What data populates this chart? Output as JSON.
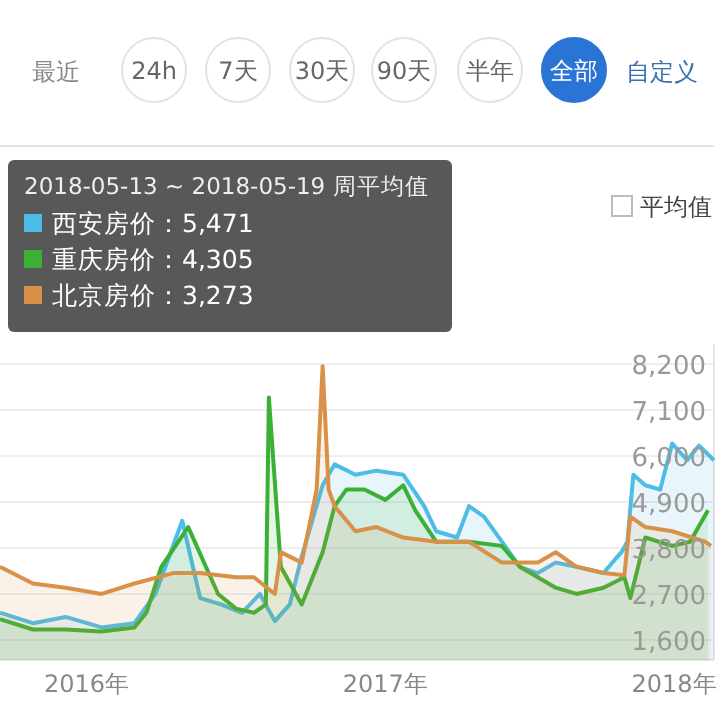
{
  "chart_data": {
    "type": "area",
    "xlim": [
      2015.71,
      2018.1
    ],
    "xticks": [
      {
        "value": 2016,
        "label": "2016年"
      },
      {
        "value": 2017,
        "label": "2017年"
      },
      {
        "value": 2018,
        "label": "2018年"
      }
    ],
    "ylim": [
      1120,
      8680
    ],
    "yticks": [
      {
        "value": 1600,
        "label": "1,600"
      },
      {
        "value": 2700,
        "label": "2,700"
      },
      {
        "value": 3800,
        "label": "3,800"
      },
      {
        "value": 4900,
        "label": "4,900"
      },
      {
        "value": 6000,
        "label": "6,000"
      },
      {
        "value": 7100,
        "label": "7,100"
      },
      {
        "value": 8200,
        "label": "8,200"
      }
    ],
    "grid": "y",
    "legend": "top left",
    "marker": "none",
    "line_style": "solid",
    "series": [
      {
        "name": "西安房价",
        "color": "#4dbde8",
        "x": [
          2015.71,
          2015.82,
          2015.93,
          2016.05,
          2016.16,
          2016.23,
          2016.32,
          2016.38,
          2016.45,
          2016.52,
          2016.58,
          2016.63,
          2016.68,
          2016.72,
          2016.79,
          2016.83,
          2016.9,
          2016.97,
          2017.06,
          2017.13,
          2017.17,
          2017.24,
          2017.28,
          2017.33,
          2017.39,
          2017.45,
          2017.51,
          2017.57,
          2017.64,
          2017.73,
          2017.79,
          2017.81,
          2017.83,
          2017.87,
          2017.92,
          2017.96,
          2018.01,
          2018.05,
          2018.1
        ],
        "values": [
          2250,
          2000,
          2150,
          1900,
          2000,
          2700,
          4450,
          2600,
          2450,
          2250,
          2700,
          2050,
          2450,
          3600,
          5300,
          5800,
          5550,
          5650,
          5550,
          4800,
          4200,
          4050,
          4800,
          4550,
          3950,
          3350,
          3200,
          3450,
          3350,
          3200,
          3700,
          3950,
          5550,
          5300,
          5200,
          6300,
          5900,
          6250,
          5900
        ]
      },
      {
        "name": "重庆房价",
        "color": "#3cb034",
        "x": [
          2015.71,
          2015.82,
          2015.93,
          2016.05,
          2016.16,
          2016.2,
          2016.25,
          2016.34,
          2016.44,
          2016.5,
          2016.56,
          2016.6,
          2016.61,
          2016.65,
          2016.72,
          2016.79,
          2016.83,
          2016.87,
          2016.93,
          2017.0,
          2017.06,
          2017.1,
          2017.17,
          2017.28,
          2017.39,
          2017.45,
          2017.51,
          2017.57,
          2017.64,
          2017.73,
          2017.8,
          2017.82,
          2017.87,
          2017.96,
          2018.02,
          2018.04,
          2018.08
        ],
        "values": [
          2100,
          1850,
          1850,
          1800,
          1900,
          2250,
          3350,
          4300,
          2700,
          2350,
          2250,
          2450,
          7400,
          3350,
          2450,
          3700,
          4800,
          5200,
          5200,
          4950,
          5300,
          4700,
          3950,
          3950,
          3850,
          3350,
          3100,
          2850,
          2700,
          2850,
          3100,
          2600,
          4050,
          3850,
          3950,
          4200,
          4700
        ]
      },
      {
        "name": "北京房价",
        "color": "#d9914a",
        "x": [
          2015.71,
          2015.82,
          2015.93,
          2016.05,
          2016.16,
          2016.29,
          2016.38,
          2016.5,
          2016.56,
          2016.63,
          2016.65,
          2016.72,
          2016.77,
          2016.79,
          2016.81,
          2016.83,
          2016.9,
          2016.97,
          2017.06,
          2017.17,
          2017.28,
          2017.39,
          2017.51,
          2017.57,
          2017.64,
          2017.73,
          2017.8,
          2017.82,
          2017.87,
          2017.96,
          2018.07,
          2018.09
        ],
        "values": [
          3350,
          2950,
          2850,
          2700,
          2950,
          3200,
          3200,
          3100,
          3100,
          2700,
          3700,
          3450,
          5200,
          8150,
          5200,
          4800,
          4200,
          4300,
          4050,
          3950,
          3950,
          3450,
          3450,
          3700,
          3350,
          3200,
          3150,
          4550,
          4300,
          4200,
          3950,
          3850
        ]
      }
    ],
    "annotations": [
      "最近",
      "24h",
      "7天",
      "30天",
      "90天",
      "半年",
      "全部",
      "自定义",
      "平均值",
      "2018-05-13 ~ 2018-05-19 周平均值",
      "：5,471",
      "：4,305",
      "：3,273"
    ]
  }
}
